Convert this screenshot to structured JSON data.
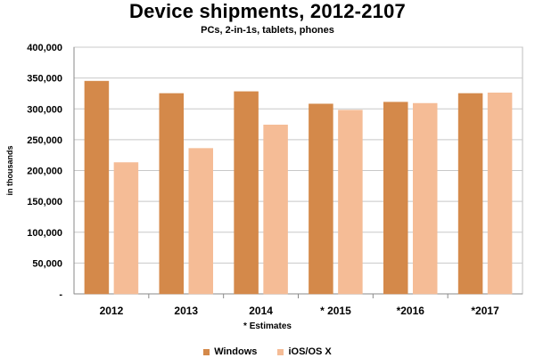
{
  "chart_data": {
    "type": "bar",
    "title": "Device shipments, 2012-2107",
    "subtitle": "PCs, 2-in-1s, tablets, phones",
    "ylabel": "in thousands",
    "xlabel": "",
    "note": "* Estimates",
    "categories": [
      "2012",
      "2013",
      "2014",
      "* 2015",
      "*2016",
      "*2017"
    ],
    "series": [
      {
        "name": "Windows",
        "values": [
          345000,
          325000,
          328000,
          308000,
          311000,
          325000
        ],
        "color": "#d4894a"
      },
      {
        "name": "iOS/OS X",
        "values": [
          213000,
          236000,
          274000,
          298000,
          309000,
          326000
        ],
        "color": "#f5bc96"
      }
    ],
    "ylim": [
      0,
      400000
    ],
    "yticks": [
      "-",
      "50,000",
      "100,000",
      "150,000",
      "200,000",
      "250,000",
      "300,000",
      "350,000",
      "400,000"
    ],
    "grid": true,
    "legend_position": "bottom"
  }
}
